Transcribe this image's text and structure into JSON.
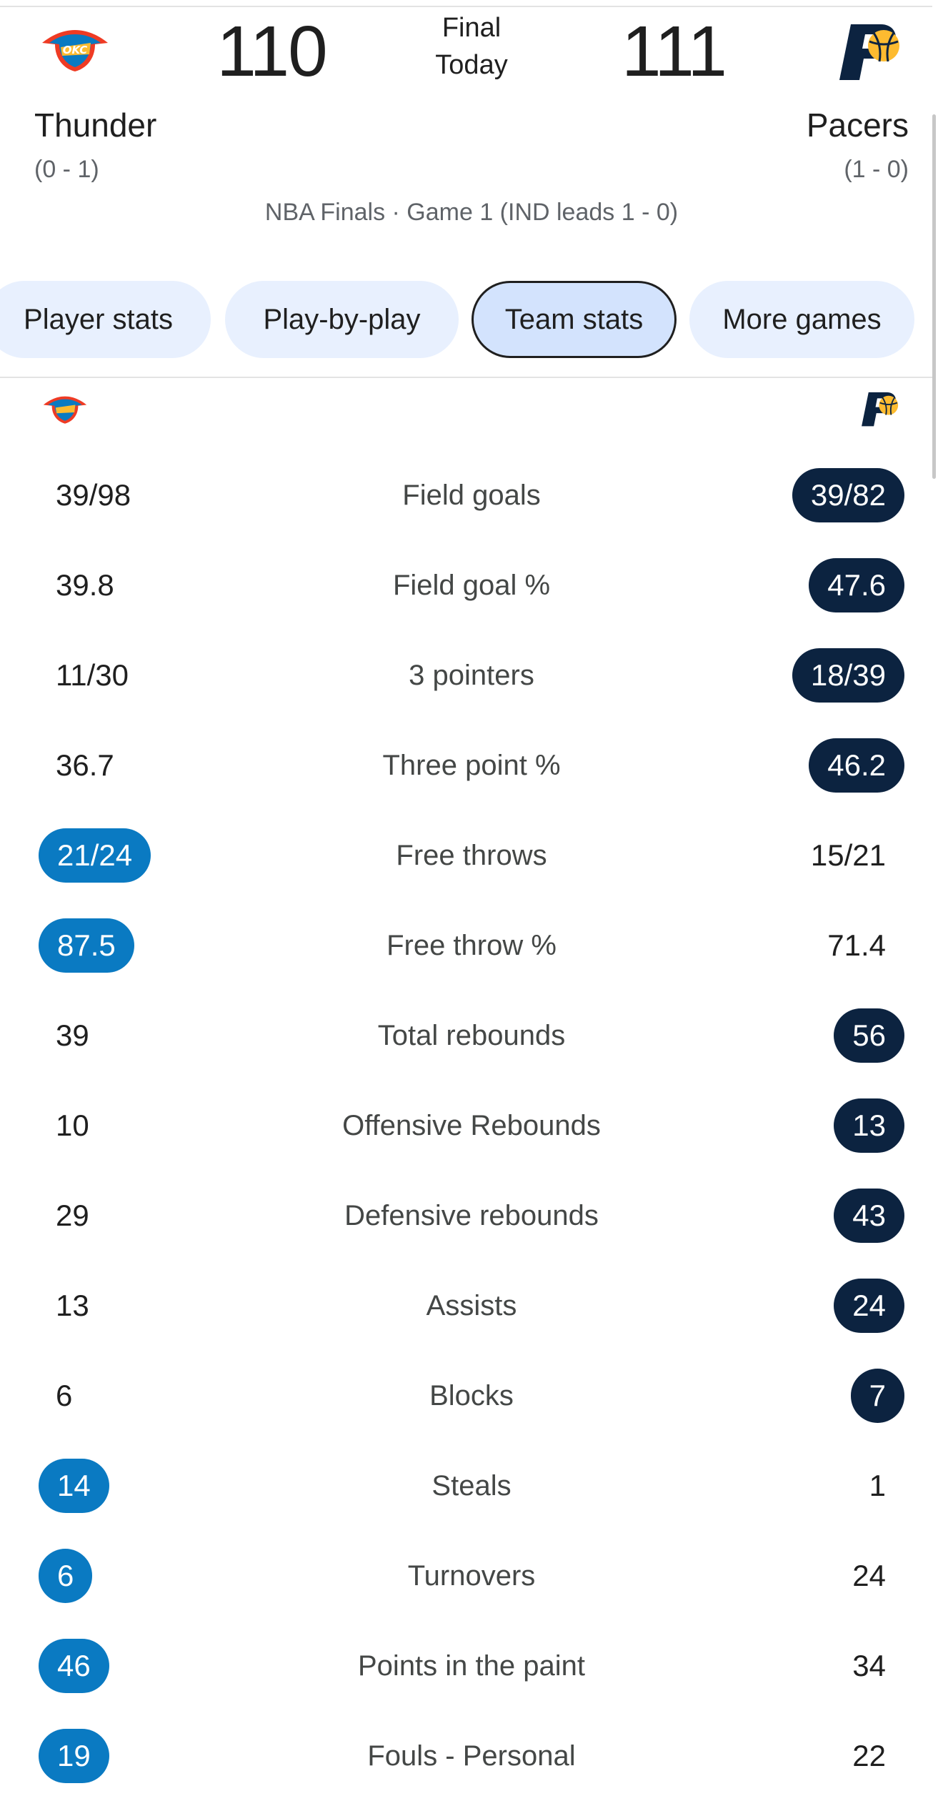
{
  "game": {
    "status": "Final",
    "date": "Today",
    "series": "NBA Finals · Game 1 (IND leads 1 - 0)"
  },
  "home": {
    "name": "Thunder",
    "score": "110",
    "record": "(0 - 1)",
    "logo_icon": "okc-thunder-logo-icon",
    "color": "#0a7ac2"
  },
  "away": {
    "name": "Pacers",
    "score": "111",
    "record": "(1 - 0)",
    "logo_icon": "indiana-pacers-logo-icon",
    "color": "#0c2340"
  },
  "tabs": [
    {
      "label": "Player stats",
      "selected": false
    },
    {
      "label": "Play-by-play",
      "selected": false
    },
    {
      "label": "Team stats",
      "selected": true
    },
    {
      "label": "More games",
      "selected": false
    }
  ],
  "stats": [
    {
      "label": "Field goals",
      "home": "39/98",
      "away": "39/82",
      "leader": "away"
    },
    {
      "label": "Field goal %",
      "home": "39.8",
      "away": "47.6",
      "leader": "away"
    },
    {
      "label": "3 pointers",
      "home": "11/30",
      "away": "18/39",
      "leader": "away"
    },
    {
      "label": "Three point %",
      "home": "36.7",
      "away": "46.2",
      "leader": "away"
    },
    {
      "label": "Free throws",
      "home": "21/24",
      "away": "15/21",
      "leader": "home"
    },
    {
      "label": "Free throw %",
      "home": "87.5",
      "away": "71.4",
      "leader": "home"
    },
    {
      "label": "Total rebounds",
      "home": "39",
      "away": "56",
      "leader": "away"
    },
    {
      "label": "Offensive Rebounds",
      "home": "10",
      "away": "13",
      "leader": "away"
    },
    {
      "label": "Defensive rebounds",
      "home": "29",
      "away": "43",
      "leader": "away"
    },
    {
      "label": "Assists",
      "home": "13",
      "away": "24",
      "leader": "away"
    },
    {
      "label": "Blocks",
      "home": "6",
      "away": "7",
      "leader": "away"
    },
    {
      "label": "Steals",
      "home": "14",
      "away": "1",
      "leader": "home"
    },
    {
      "label": "Turnovers",
      "home": "6",
      "away": "24",
      "leader": "home"
    },
    {
      "label": "Points in the paint",
      "home": "46",
      "away": "34",
      "leader": "home"
    },
    {
      "label": "Fouls - Personal",
      "home": "19",
      "away": "22",
      "leader": "home"
    }
  ]
}
